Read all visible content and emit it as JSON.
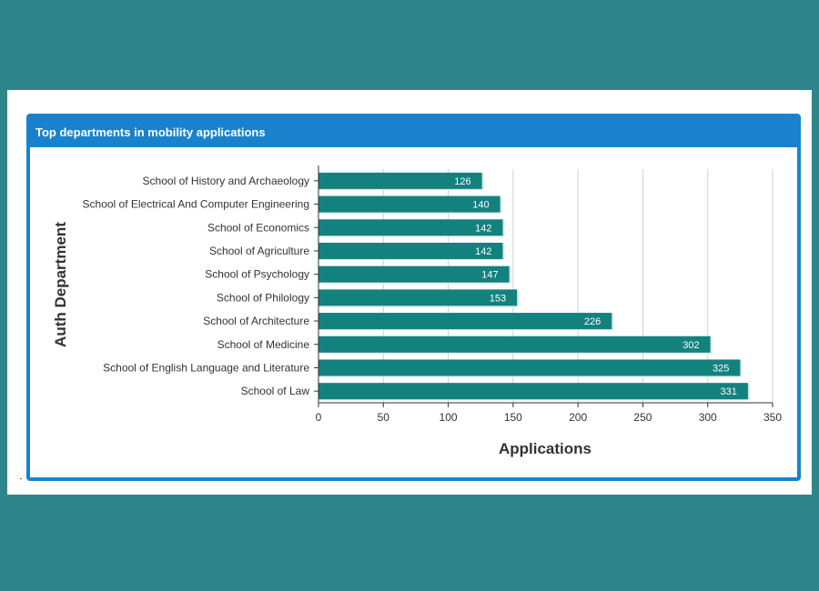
{
  "panel": {
    "title": "Top departments in mobility applications"
  },
  "chart_data": {
    "type": "bar",
    "orientation": "horizontal",
    "title": "",
    "xlabel": "Applications",
    "ylabel": "Auth Department",
    "xlim": [
      0,
      350
    ],
    "xticks": [
      0,
      50,
      100,
      150,
      200,
      250,
      300,
      350
    ],
    "grid": true,
    "categories": [
      "School of History and Archaeology",
      "School of Electrical And Computer Engineering",
      "School of Economics",
      "School of Agriculture",
      "School of Psychology",
      "School of Philology",
      "School of Architecture",
      "School of Medicine",
      "School of English Language and Literature",
      "School of Law"
    ],
    "values": [
      126,
      140,
      142,
      142,
      147,
      153,
      226,
      302,
      325,
      331
    ],
    "bar_color": "#13827f"
  }
}
